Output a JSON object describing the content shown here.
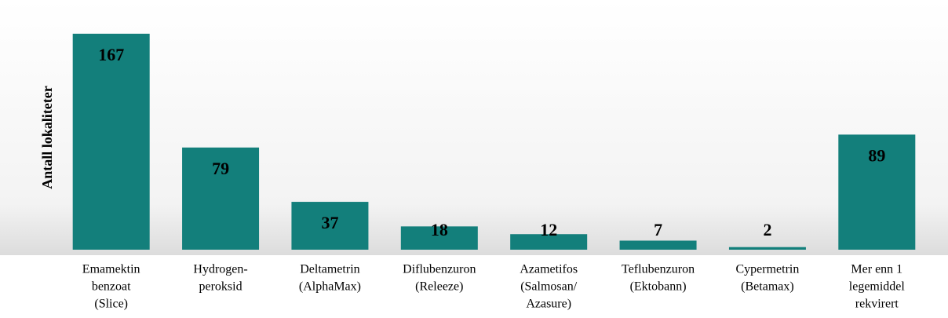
{
  "chart_data": {
    "type": "bar",
    "y_label": "Antall lokaliteter",
    "categories": [
      [
        "Emamektin",
        "benzoat",
        "(Slice)"
      ],
      [
        "Hydrogen-",
        "peroksid"
      ],
      [
        "Deltametrin",
        "(AlphaMax)"
      ],
      [
        "Diflubenzuron",
        "(Releeze)"
      ],
      [
        "Azametifos",
        "(Salmosan/",
        "Azasure)"
      ],
      [
        "Teflubenzuron",
        "(Ektobann)"
      ],
      [
        "Cypermetrin",
        "(Betamax)"
      ],
      [
        "Mer enn 1",
        "legemiddel",
        "rekvirert"
      ]
    ],
    "values": [
      167,
      79,
      37,
      18,
      12,
      7,
      2,
      89
    ],
    "color": "#137f7b",
    "ylim": [
      0,
      170
    ]
  }
}
